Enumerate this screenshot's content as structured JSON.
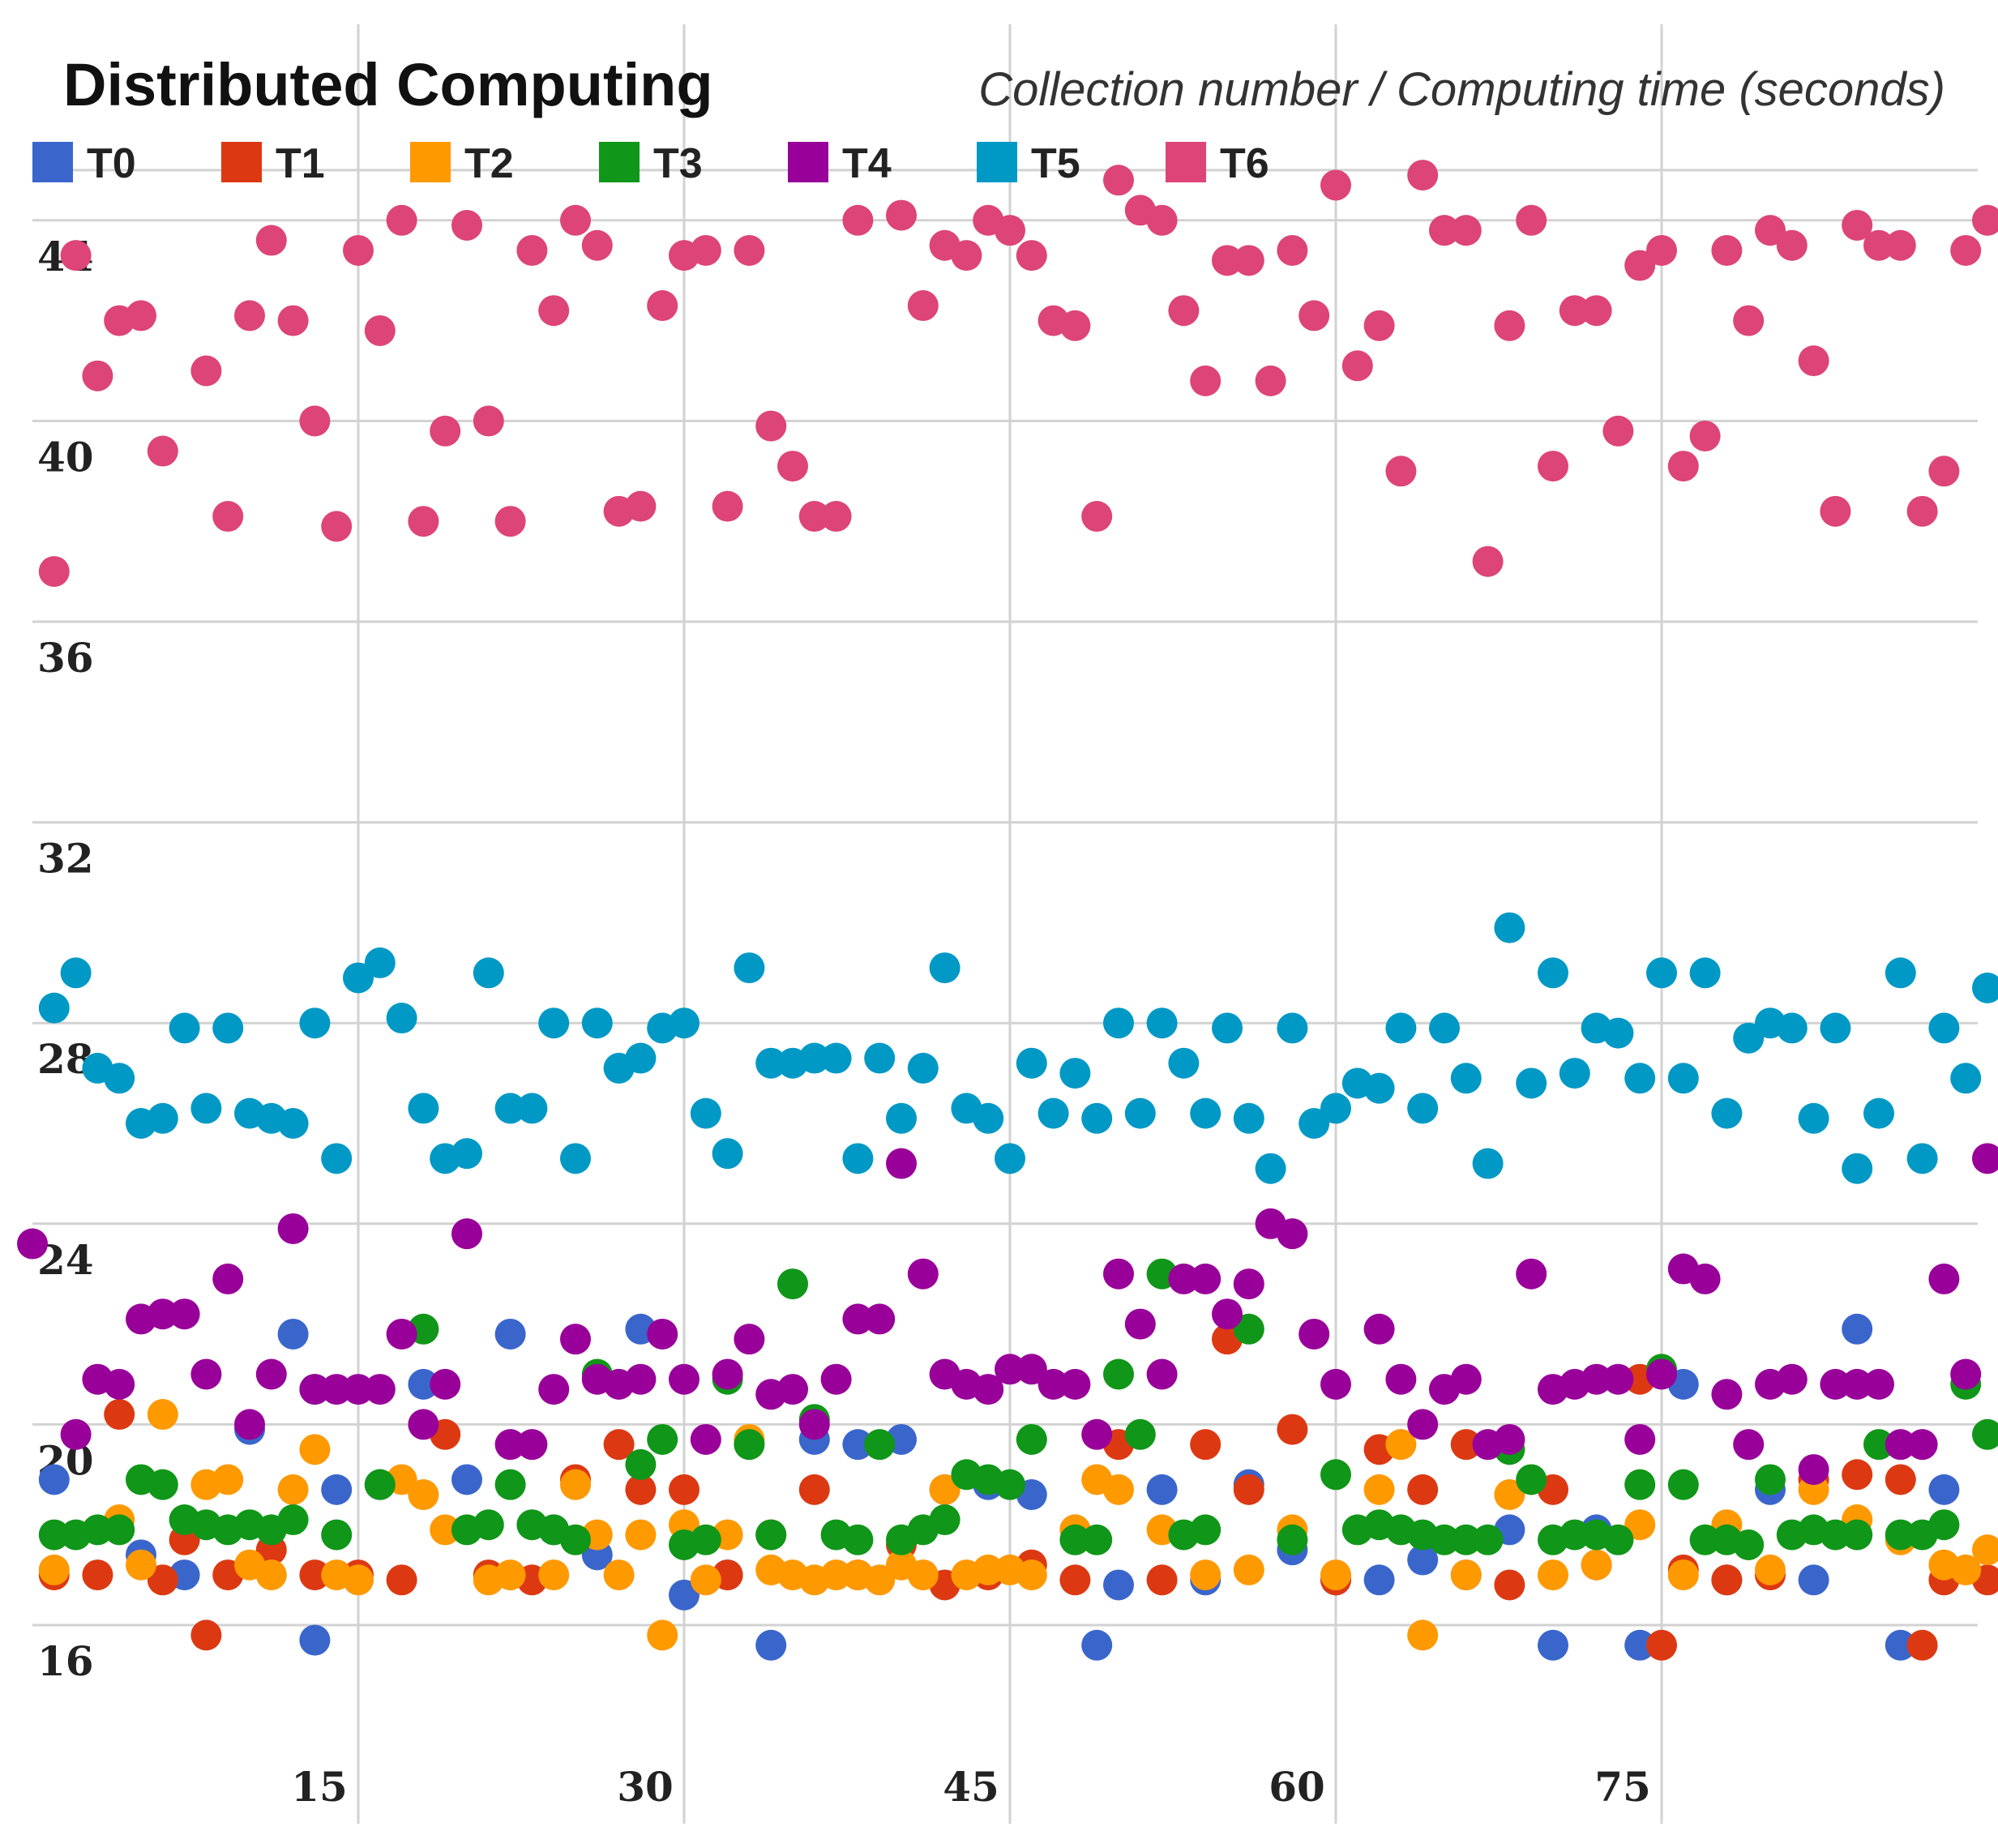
{
  "chart_data": {
    "type": "scatter",
    "title": "Distributed Computing",
    "subtitle": "Collection number / Computing time (seconds)",
    "xlabel": "Collection number",
    "ylabel": "Computing time (seconds)",
    "xlim": [
      0,
      90
    ],
    "ylim": [
      13,
      47
    ],
    "x_ticks": [
      15,
      30,
      45,
      60,
      75
    ],
    "y_ticks": [
      16,
      20,
      24,
      28,
      32,
      36,
      40,
      44
    ],
    "legend_position": "top-left",
    "series": [
      {
        "name": "T0",
        "color": "#3a66cc",
        "x": [
          1,
          5,
          7,
          10,
          12,
          13,
          14,
          16,
          18,
          20,
          22,
          24,
          26,
          28,
          30,
          32,
          34,
          36,
          38,
          40,
          42,
          44,
          46,
          48,
          49,
          50,
          52,
          54,
          56,
          58,
          60,
          62,
          64,
          66,
          68,
          70,
          72,
          74,
          76,
          78,
          80,
          82,
          84,
          86,
          88
        ],
        "y": [
          18.9,
          17.4,
          17.0,
          19.9,
          21.8,
          15.7,
          18.7,
          18.8,
          20.8,
          18.9,
          21.8,
          17.9,
          17.4,
          21.9,
          16.6,
          17.0,
          15.6,
          19.7,
          19.6,
          19.7,
          18.7,
          18.8,
          18.6,
          17.9,
          15.6,
          16.8,
          18.7,
          16.9,
          18.8,
          17.5,
          16.9,
          16.9,
          17.3,
          17.0,
          17.9,
          15.6,
          17.9,
          15.6,
          20.8,
          16.9,
          18.7,
          16.9,
          21.9,
          15.6,
          18.7
        ]
      },
      {
        "name": "T1",
        "color": "#dc3912",
        "x": [
          1,
          3,
          4,
          6,
          7,
          8,
          9,
          11,
          13,
          15,
          17,
          19,
          21,
          23,
          25,
          27,
          28,
          30,
          32,
          34,
          36,
          38,
          40,
          42,
          44,
          46,
          48,
          50,
          52,
          54,
          55,
          56,
          58,
          60,
          62,
          64,
          66,
          68,
          70,
          72,
          74,
          75,
          76,
          78,
          80,
          82,
          84,
          86,
          87,
          88,
          90
        ],
        "y": [
          17.0,
          17.0,
          20.2,
          16.9,
          17.7,
          15.8,
          17.0,
          17.5,
          17.0,
          17.0,
          16.9,
          19.8,
          17.0,
          16.9,
          18.9,
          19.6,
          18.7,
          18.7,
          17.0,
          17.8,
          18.7,
          17.0,
          17.6,
          16.8,
          17.0,
          17.2,
          16.9,
          19.6,
          16.9,
          19.6,
          21.7,
          18.7,
          19.9,
          16.9,
          19.5,
          18.7,
          19.6,
          16.8,
          18.7,
          17.2,
          20.9,
          15.6,
          17.1,
          16.9,
          17.0,
          18.9,
          19.0,
          18.9,
          15.6,
          16.9,
          16.9
        ]
      },
      {
        "name": "T2",
        "color": "#ff9900",
        "x": [
          1,
          4,
          5,
          6,
          8,
          9,
          10,
          11,
          12,
          13,
          14,
          15,
          17,
          18,
          19,
          21,
          22,
          24,
          25,
          26,
          27,
          28,
          29,
          30,
          31,
          32,
          33,
          34,
          35,
          36,
          37,
          38,
          39,
          40,
          41,
          42,
          43,
          44,
          45,
          46,
          48,
          49,
          50,
          52,
          54,
          56,
          58,
          60,
          62,
          63,
          64,
          66,
          68,
          70,
          72,
          74,
          76,
          78,
          80,
          82,
          84,
          86,
          88,
          89,
          90
        ],
        "y": [
          17.1,
          18.1,
          17.2,
          20.2,
          18.8,
          18.9,
          17.2,
          17.0,
          18.7,
          19.5,
          17.0,
          16.9,
          18.9,
          18.6,
          17.9,
          16.9,
          17.0,
          17.0,
          18.8,
          17.8,
          17.0,
          17.8,
          15.8,
          18.0,
          16.9,
          17.8,
          19.7,
          17.1,
          17.0,
          16.9,
          17.0,
          17.0,
          16.9,
          17.2,
          17.0,
          18.7,
          17.0,
          17.1,
          17.1,
          17.0,
          17.9,
          18.9,
          18.7,
          17.9,
          17.0,
          17.1,
          17.9,
          17.0,
          18.7,
          19.6,
          15.8,
          17.0,
          18.6,
          17.0,
          17.2,
          18.0,
          17.0,
          18.0,
          17.1,
          18.7,
          18.1,
          17.7,
          17.2,
          17.1,
          17.5
        ]
      },
      {
        "name": "T3",
        "color": "#109618",
        "x": [
          1,
          2,
          3,
          4,
          5,
          6,
          7,
          8,
          9,
          10,
          11,
          12,
          13,
          14,
          16,
          18,
          20,
          21,
          22,
          23,
          24,
          25,
          26,
          28,
          29,
          30,
          31,
          32,
          33,
          34,
          35,
          36,
          37,
          38,
          39,
          40,
          41,
          42,
          43,
          44,
          45,
          46,
          48,
          49,
          50,
          51,
          52,
          53,
          54,
          56,
          58,
          60,
          61,
          62,
          63,
          64,
          65,
          66,
          67,
          68,
          69,
          70,
          71,
          72,
          73,
          74,
          75,
          76,
          77,
          78,
          79,
          80,
          81,
          82,
          83,
          84,
          85,
          86,
          87,
          88,
          89,
          90
        ],
        "y": [
          17.8,
          17.8,
          17.9,
          17.9,
          18.9,
          18.8,
          18.1,
          18.0,
          17.9,
          18.0,
          17.9,
          18.1,
          20.7,
          17.8,
          18.8,
          21.9,
          17.9,
          18.0,
          18.8,
          18.0,
          17.9,
          17.7,
          21.0,
          19.2,
          19.7,
          17.6,
          17.7,
          20.9,
          19.6,
          17.8,
          22.8,
          20.1,
          17.8,
          17.7,
          19.6,
          17.7,
          17.9,
          18.1,
          19.0,
          18.9,
          18.8,
          19.7,
          17.7,
          17.7,
          21.0,
          19.8,
          23.0,
          17.8,
          17.9,
          21.9,
          17.7,
          19.0,
          17.9,
          18.0,
          17.9,
          17.8,
          17.7,
          17.7,
          17.7,
          19.5,
          18.9,
          17.7,
          17.8,
          17.8,
          17.7,
          18.8,
          21.1,
          18.8,
          17.7,
          17.7,
          17.6,
          18.9,
          17.8,
          17.9,
          17.8,
          17.8,
          19.6,
          17.8,
          17.8,
          18.0,
          20.8,
          19.8
        ]
      },
      {
        "name": "T4",
        "color": "#990099",
        "x": [
          0,
          2,
          3,
          4,
          5,
          6,
          7,
          8,
          9,
          10,
          11,
          12,
          13,
          14,
          15,
          16,
          17,
          18,
          19,
          20,
          22,
          23,
          24,
          25,
          26,
          27,
          28,
          29,
          30,
          31,
          32,
          33,
          34,
          35,
          36,
          37,
          38,
          39,
          40,
          41,
          42,
          43,
          44,
          45,
          46,
          47,
          48,
          49,
          50,
          51,
          52,
          53,
          54,
          55,
          56,
          57,
          58,
          59,
          60,
          62,
          63,
          64,
          65,
          66,
          67,
          68,
          69,
          70,
          71,
          72,
          73,
          74,
          75,
          76,
          77,
          78,
          79,
          80,
          81,
          82,
          83,
          84,
          85,
          86,
          87,
          88,
          89,
          90
        ],
        "y": [
          23.6,
          19.8,
          20.9,
          20.8,
          22.1,
          22.2,
          22.2,
          21.0,
          22.9,
          20.0,
          21.0,
          23.9,
          20.7,
          20.7,
          20.7,
          20.7,
          21.8,
          20.0,
          20.8,
          23.8,
          19.6,
          19.6,
          20.7,
          21.7,
          20.9,
          20.8,
          20.9,
          21.8,
          20.9,
          19.7,
          21.0,
          21.7,
          20.6,
          20.7,
          20.0,
          20.9,
          22.1,
          22.1,
          25.2,
          23.0,
          21.0,
          20.8,
          20.7,
          21.1,
          21.1,
          20.8,
          20.8,
          19.8,
          23.0,
          22.0,
          21.0,
          22.9,
          22.9,
          22.2,
          22.8,
          24.0,
          23.8,
          21.8,
          20.8,
          21.9,
          20.9,
          20.0,
          20.7,
          20.9,
          19.6,
          19.7,
          23.0,
          20.7,
          20.8,
          20.9,
          20.9,
          19.7,
          21.0,
          23.1,
          22.9,
          20.6,
          19.6,
          20.8,
          20.9,
          19.1,
          20.8,
          20.8,
          20.8,
          19.6,
          19.6,
          22.9,
          21.0,
          25.3
        ]
      },
      {
        "name": "T5",
        "color": "#0099c6",
        "x": [
          1,
          2,
          3,
          4,
          5,
          6,
          7,
          8,
          9,
          10,
          11,
          12,
          13,
          14,
          15,
          16,
          17,
          18,
          19,
          20,
          21,
          22,
          23,
          24,
          25,
          26,
          27,
          28,
          29,
          30,
          31,
          32,
          33,
          34,
          35,
          36,
          37,
          38,
          39,
          40,
          41,
          42,
          43,
          44,
          45,
          46,
          47,
          48,
          49,
          50,
          51,
          52,
          53,
          54,
          55,
          56,
          57,
          58,
          59,
          60,
          61,
          62,
          63,
          64,
          65,
          66,
          67,
          68,
          69,
          70,
          71,
          72,
          73,
          74,
          75,
          76,
          77,
          78,
          79,
          80,
          81,
          82,
          83,
          84,
          85,
          86,
          87,
          88,
          89,
          90
        ],
        "y": [
          28.3,
          29.0,
          27.1,
          26.9,
          26.0,
          26.1,
          27.9,
          26.3,
          27.9,
          26.2,
          26.1,
          26.0,
          28.0,
          25.3,
          28.9,
          29.2,
          28.1,
          26.3,
          25.3,
          25.4,
          29.0,
          26.3,
          26.3,
          28.0,
          25.3,
          28.0,
          27.1,
          27.3,
          27.9,
          28.0,
          26.2,
          25.4,
          29.1,
          27.2,
          27.2,
          27.3,
          27.3,
          25.3,
          27.3,
          26.1,
          27.1,
          29.1,
          26.3,
          26.1,
          25.3,
          27.2,
          26.2,
          27.0,
          26.1,
          28.0,
          26.2,
          28.0,
          27.2,
          26.2,
          27.9,
          26.1,
          25.1,
          27.9,
          26.0,
          26.3,
          26.8,
          26.7,
          27.9,
          26.3,
          27.9,
          26.9,
          25.2,
          29.9,
          26.8,
          29.0,
          27.0,
          27.9,
          27.8,
          26.9,
          29.0,
          26.9,
          29.0,
          26.2,
          27.7,
          28.0,
          27.9,
          26.1,
          27.9,
          25.1,
          26.2,
          29.0,
          25.3,
          27.9,
          26.9,
          28.7
        ]
      },
      {
        "name": "T6",
        "color": "#dd4477",
        "x": [
          1,
          2,
          3,
          4,
          5,
          6,
          8,
          9,
          10,
          11,
          12,
          13,
          14,
          15,
          16,
          17,
          18,
          19,
          20,
          21,
          22,
          23,
          24,
          25,
          26,
          27,
          28,
          29,
          30,
          31,
          32,
          33,
          34,
          35,
          36,
          37,
          38,
          40,
          41,
          42,
          43,
          44,
          45,
          46,
          47,
          48,
          49,
          50,
          51,
          52,
          53,
          54,
          55,
          56,
          57,
          58,
          59,
          60,
          61,
          62,
          63,
          64,
          65,
          66,
          67,
          68,
          69,
          70,
          71,
          72,
          73,
          74,
          75,
          76,
          77,
          78,
          79,
          80,
          81,
          82,
          83,
          84,
          85,
          86,
          87,
          88,
          89,
          90
        ],
        "y": [
          37.0,
          43.3,
          40.9,
          42.0,
          42.1,
          39.4,
          41.0,
          38.1,
          42.1,
          43.6,
          42.0,
          40.0,
          37.9,
          43.4,
          41.8,
          44.0,
          38.0,
          39.8,
          43.9,
          40.0,
          38.0,
          43.4,
          42.2,
          44.0,
          43.5,
          38.2,
          38.3,
          42.3,
          43.3,
          43.4,
          38.3,
          43.4,
          39.9,
          39.1,
          38.1,
          38.1,
          44.0,
          44.1,
          42.3,
          43.5,
          43.3,
          44.0,
          43.8,
          43.3,
          42.0,
          41.9,
          38.1,
          44.8,
          44.2,
          44.0,
          42.2,
          40.8,
          43.2,
          43.2,
          40.8,
          43.4,
          42.1,
          44.7,
          41.1,
          41.9,
          39.0,
          44.9,
          43.8,
          43.8,
          37.2,
          41.9,
          44.0,
          39.1,
          42.2,
          42.2,
          39.8,
          43.1,
          43.4,
          39.1,
          39.7,
          43.4,
          42.0,
          43.8,
          43.5,
          41.2,
          38.2,
          43.9,
          43.5,
          43.5,
          38.2,
          39.0,
          43.4,
          44.0
        ]
      }
    ]
  }
}
